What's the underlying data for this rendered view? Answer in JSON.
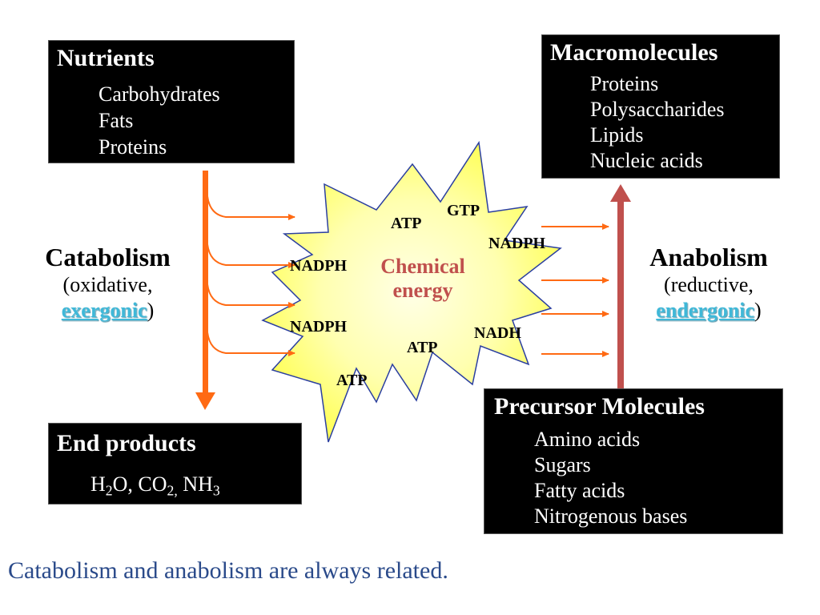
{
  "nutrients": {
    "title": "Nutrients",
    "items": [
      "Carbohydrates",
      "Fats",
      "Proteins"
    ]
  },
  "macromolecules": {
    "title": "Macromolecules",
    "items": [
      "Proteins",
      "Polysaccharides",
      "Lipids",
      "Nucleic acids"
    ]
  },
  "end_products": {
    "title": "End products",
    "formula": {
      "h2o_main": "H",
      "h2o_sub": "2",
      "h2o_tail": "O, ",
      "co2_main": "CO",
      "co2_sub": "2,",
      "nh3_main": " NH",
      "nh3_sub": "3"
    }
  },
  "precursor": {
    "title": "Precursor Molecules",
    "items": [
      "Amino acids",
      "Sugars",
      "Fatty acids",
      "Nitrogenous bases"
    ]
  },
  "catabolism": {
    "title": "Catabolism",
    "line1": "(oxidative,",
    "highlight": "exergonic",
    "tail": ")"
  },
  "anabolism": {
    "title": "Anabolism",
    "line1": "(reductive,",
    "highlight": "endergonic",
    "tail": ")"
  },
  "energy": {
    "label_line1": "Chemical",
    "label_line2": "energy",
    "carriers": [
      "ATP",
      "GTP",
      "NADPH",
      "NADPH",
      "NADPH",
      "NADH",
      "ATP",
      "ATP"
    ]
  },
  "caption": "Catabolism and anabolism are always related.",
  "colors": {
    "box_bg": "#000000",
    "catabolism_arrow": "#ff6a13",
    "anabolism_arrow": "#c0504d",
    "burst_fill_center": "#ffffe0",
    "burst_fill_edge": "#ffff66",
    "burst_stroke": "#2b3fa0",
    "highlight_text": "#3fb8d8",
    "caption_text": "#2a4a8a",
    "energy_text": "#c0504d"
  }
}
